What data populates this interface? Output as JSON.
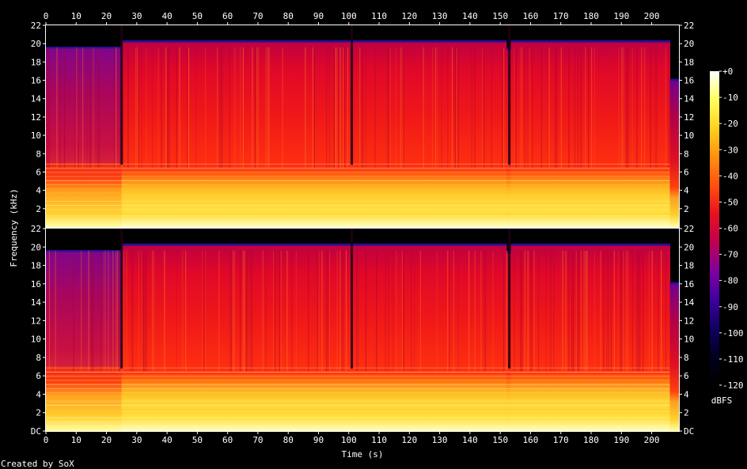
{
  "chart_data": {
    "type": "heatmap",
    "title": "",
    "xlabel": "Time (s)",
    "ylabel": "Frequency (kHz)",
    "colorbar_label": "dBFS",
    "footer": "Created by SoX",
    "xlim": [
      0,
      209
    ],
    "x_ticks": [
      "0",
      "10",
      "20",
      "30",
      "40",
      "50",
      "60",
      "70",
      "80",
      "90",
      "100",
      "110",
      "120",
      "130",
      "140",
      "150",
      "160",
      "170",
      "180",
      "190",
      "200"
    ],
    "channels": [
      {
        "ylim": [
          0,
          22
        ],
        "y_ticks": [
          "2",
          "4",
          "6",
          "8",
          "10",
          "12",
          "14",
          "16",
          "18",
          "20",
          "22"
        ],
        "cutoff_khz_segments": [
          [
            0,
            25,
            19.5
          ],
          [
            25,
            101,
            20.2
          ],
          [
            101,
            152,
            20.2
          ],
          [
            152,
            153.5,
            19.4
          ],
          [
            153.5,
            206,
            20.2
          ],
          [
            206,
            209,
            16
          ]
        ],
        "gap_seconds": [
          25,
          101,
          153
        ]
      },
      {
        "ylim": [
          0,
          22
        ],
        "y_ticks": [
          "DC",
          "2",
          "4",
          "6",
          "8",
          "10",
          "12",
          "14",
          "16",
          "18",
          "20",
          "22"
        ],
        "cutoff_khz_segments": [
          [
            0,
            25,
            19.5
          ],
          [
            25,
            101,
            20.2
          ],
          [
            101,
            152,
            20.2
          ],
          [
            152,
            153.5,
            19.4
          ],
          [
            153.5,
            206,
            20.2
          ],
          [
            206,
            209,
            16
          ]
        ],
        "gap_seconds": [
          25,
          101,
          153
        ]
      }
    ],
    "colorbar": {
      "range": [
        -120,
        0
      ],
      "ticks": [
        "+0",
        "-10",
        "-20",
        "-30",
        "-40",
        "-50",
        "-60",
        "-70",
        "-80",
        "-90",
        "-100",
        "-110",
        "-120"
      ],
      "stops": [
        "#ffffff",
        "#ffff60",
        "#ffd020",
        "#ff9010",
        "#ff5010",
        "#e81020",
        "#c00050",
        "#8000a0",
        "#4000a0",
        "#100060",
        "#000020",
        "#000000"
      ]
    }
  }
}
